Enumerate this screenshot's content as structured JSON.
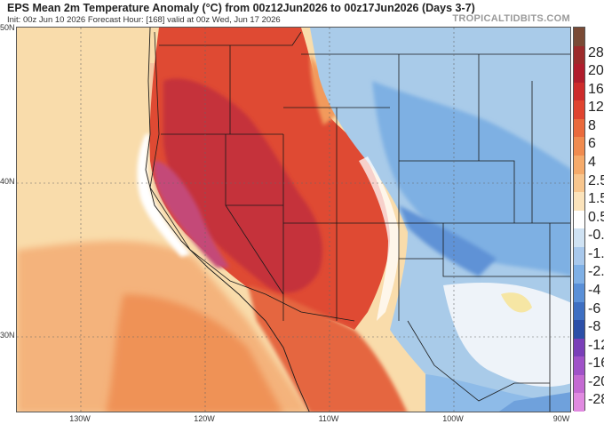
{
  "header": {
    "title": "EPS Mean 2m Temperature Anomaly (°C) from 00z12Jun2026 to 00z17Jun2026 (Days 3-7)",
    "subtitle": "Init: 00z Jun 10 2026   Forecast Hour: [168]   valid at 00z Wed, Jun 17 2026",
    "brand": "TROPICALTIDBITS.COM"
  },
  "axes": {
    "lat_labels": [
      "50N",
      "40N",
      "30N"
    ],
    "lon_labels": [
      "130W",
      "120W",
      "110W",
      "100W",
      "90W"
    ]
  },
  "colorbar": {
    "labels": [
      "28",
      "20",
      "16",
      "12",
      "8",
      "6",
      "4",
      "2.5",
      "1.5",
      "0.5",
      "-0.5",
      "-1.5",
      "-2.5",
      "-4",
      "-6",
      "-8",
      "-12",
      "-16",
      "-20",
      "-28"
    ],
    "colors": [
      "#7a4a35",
      "#9c2a2a",
      "#b01c2c",
      "#cd2b2b",
      "#e0442f",
      "#ea6a3c",
      "#f08b4f",
      "#f5aa6a",
      "#f8c68e",
      "#fbe3bb",
      "#ffffff",
      "#cfe2f3",
      "#a8c8ec",
      "#7fb0e6",
      "#5a90d8",
      "#3e6fc2",
      "#2c4fa8",
      "#7a3fb8",
      "#a052c8",
      "#c46ad2",
      "#e08ae0"
    ]
  }
}
